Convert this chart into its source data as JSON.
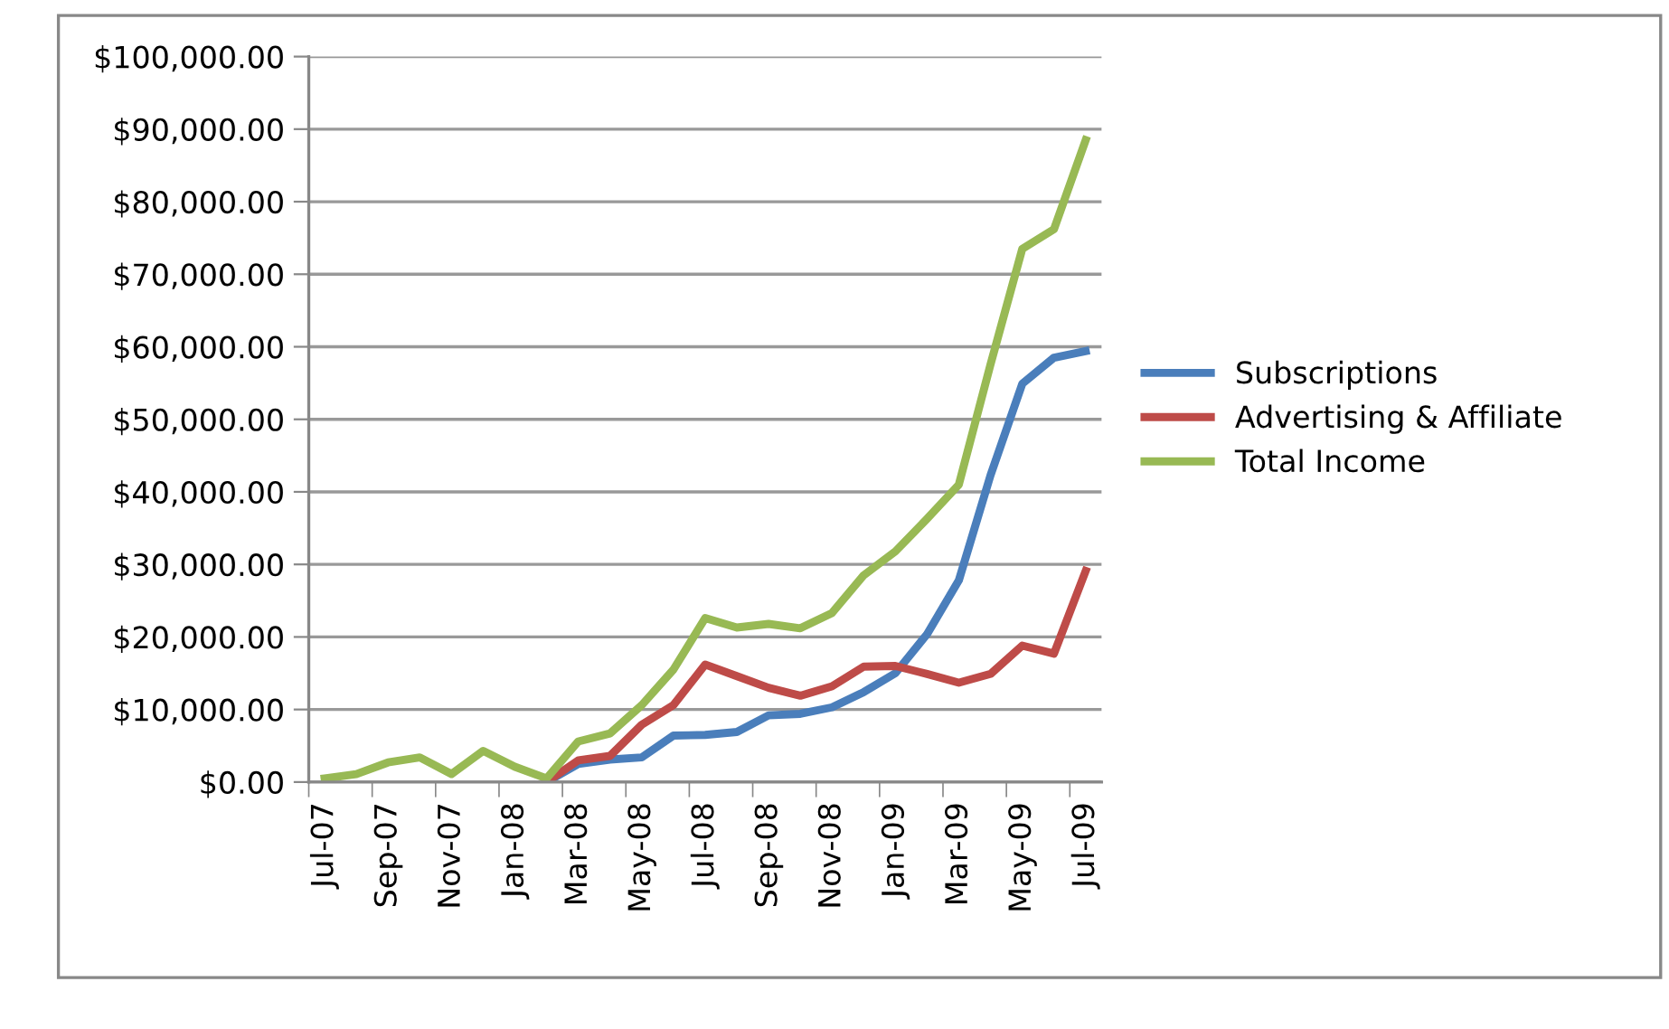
{
  "chart_data": {
    "type": "line",
    "categories": [
      "Jul-07",
      null,
      "Sep-07",
      null,
      "Nov-07",
      null,
      "Jan-08",
      null,
      "Mar-08",
      null,
      "May-08",
      null,
      "Jul-08",
      null,
      "Sep-08",
      null,
      "Nov-08",
      null,
      "Jan-09",
      null,
      "Mar-09",
      null,
      "May-09",
      null,
      "Jul-09"
    ],
    "series": [
      {
        "name": "Subscriptions",
        "color": "#4a7ebb",
        "values": [
          null,
          null,
          null,
          null,
          null,
          null,
          null,
          0,
          2500,
          3100,
          3400,
          6400,
          6500,
          6900,
          9200,
          9400,
          10300,
          12400,
          15000,
          20400,
          27800,
          42300,
          54900,
          58500,
          59400
        ]
      },
      {
        "name": "Advertising & Affiliate",
        "color": "#be4b48",
        "values": [
          null,
          null,
          null,
          null,
          null,
          null,
          null,
          0,
          3000,
          3600,
          7900,
          10600,
          16200,
          14600,
          13000,
          11900,
          13200,
          15900,
          16000,
          14900,
          13700,
          14900,
          18800,
          17700,
          29100
        ]
      },
      {
        "name": "Total Income",
        "color": "#98b954",
        "values": [
          500,
          1100,
          2700,
          3400,
          1100,
          4300,
          2100,
          500,
          5600,
          6700,
          10600,
          15500,
          22600,
          21300,
          21800,
          21200,
          23300,
          28500,
          31800,
          36300,
          41000,
          57600,
          73500,
          76200,
          88500
        ]
      }
    ],
    "ylim": [
      0,
      100000
    ],
    "yticks": [
      {
        "value": 0,
        "label": "$0.00"
      },
      {
        "value": 10000,
        "label": "$10,000.00"
      },
      {
        "value": 20000,
        "label": "$20,000.00"
      },
      {
        "value": 30000,
        "label": "$30,000.00"
      },
      {
        "value": 40000,
        "label": "$40,000.00"
      },
      {
        "value": 50000,
        "label": "$50,000.00"
      },
      {
        "value": 60000,
        "label": "$60,000.00"
      },
      {
        "value": 70000,
        "label": "$70,000.00"
      },
      {
        "value": 80000,
        "label": "$80,000.00"
      },
      {
        "value": 90000,
        "label": "$90,000.00"
      },
      {
        "value": 100000,
        "label": "$100,000.00"
      }
    ],
    "grid": "y",
    "legend": "right",
    "marker": "none",
    "line_style": "solid"
  }
}
